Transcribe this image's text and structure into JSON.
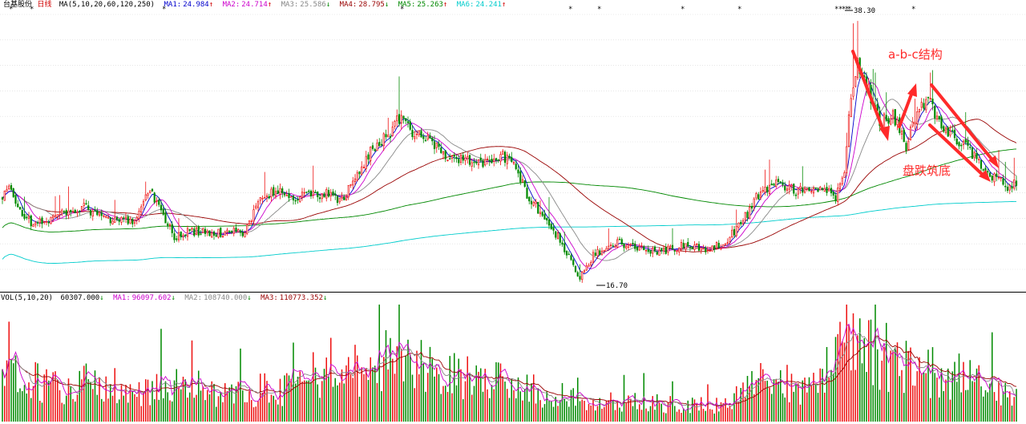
{
  "chart_data": {
    "type": "candlestick",
    "period_label": "日线",
    "stock_name": "台基股份",
    "price_panel": {
      "ma_header": "MA(5,10,20,60,120,250)",
      "ma_values": [
        {
          "label": "MA1:",
          "value": "24.984",
          "arrow": "↑",
          "color": "#0000cc"
        },
        {
          "label": "MA2:",
          "value": "24.714",
          "arrow": "↑",
          "color": "#cc00cc"
        },
        {
          "label": "MA3:",
          "value": "25.586",
          "arrow": "↓",
          "color": "#888888"
        },
        {
          "label": "MA4:",
          "value": "28.795",
          "arrow": "↓",
          "color": "#990000"
        },
        {
          "label": "MA5:",
          "value": "25.263",
          "arrow": "↑",
          "color": "#008800"
        },
        {
          "label": "MA6:",
          "value": "24.241",
          "arrow": "↑",
          "color": "#00cccc"
        }
      ],
      "max_label": "38.30",
      "min_label": "16.70",
      "y_range": [
        16.0,
        39.5
      ],
      "annotations": [
        {
          "text": "a-b-c结构",
          "color": "#ff2a2a"
        },
        {
          "text": "盘跌筑底",
          "color": "#ff2a2a"
        }
      ]
    },
    "volume_panel": {
      "header": "VOL(5,10,20)",
      "current": "60307.000",
      "current_arrow": "↓",
      "ma_values": [
        {
          "label": "MA1:",
          "value": "96097.602",
          "arrow": "↓",
          "color": "#cc00cc"
        },
        {
          "label": "MA2:",
          "value": "108740.000",
          "arrow": "↓",
          "color": "#888888"
        },
        {
          "label": "MA3:",
          "value": "110773.352",
          "arrow": "↓",
          "color": "#990000"
        }
      ]
    },
    "colors": {
      "up": "#ee1111",
      "down": "#008a00",
      "ma1": "#0000cc",
      "ma2": "#cc00cc",
      "ma3": "#888888",
      "ma4": "#990000",
      "ma5": "#008800",
      "ma6": "#00cccc"
    },
    "key_closes": [
      [
        0,
        23.5
      ],
      [
        3,
        24.6
      ],
      [
        8,
        22.6
      ],
      [
        14,
        21.4
      ],
      [
        20,
        21.8
      ],
      [
        28,
        22.4
      ],
      [
        36,
        22.9
      ],
      [
        44,
        22.2
      ],
      [
        52,
        21.6
      ],
      [
        60,
        21.9
      ],
      [
        67,
        24.4
      ],
      [
        72,
        22.6
      ],
      [
        78,
        20.4
      ],
      [
        86,
        20.9
      ],
      [
        96,
        20.6
      ],
      [
        104,
        21.0
      ],
      [
        110,
        20.8
      ],
      [
        116,
        23.2
      ],
      [
        124,
        24.4
      ],
      [
        130,
        23.6
      ],
      [
        138,
        23.8
      ],
      [
        146,
        24.0
      ],
      [
        154,
        23.4
      ],
      [
        162,
        25.8
      ],
      [
        168,
        27.9
      ],
      [
        174,
        28.6
      ],
      [
        180,
        30.2
      ],
      [
        186,
        29.0
      ],
      [
        194,
        28.4
      ],
      [
        202,
        27.0
      ],
      [
        210,
        26.8
      ],
      [
        218,
        26.4
      ],
      [
        226,
        27.3
      ],
      [
        232,
        26.3
      ],
      [
        238,
        24.0
      ],
      [
        246,
        22.0
      ],
      [
        252,
        20.4
      ],
      [
        258,
        18.4
      ],
      [
        262,
        16.9
      ],
      [
        268,
        18.8
      ],
      [
        276,
        20.0
      ],
      [
        284,
        19.8
      ],
      [
        292,
        19.3
      ],
      [
        300,
        19.3
      ],
      [
        310,
        19.7
      ],
      [
        320,
        19.3
      ],
      [
        328,
        20.0
      ],
      [
        336,
        21.8
      ],
      [
        344,
        24.2
      ],
      [
        352,
        25.0
      ],
      [
        360,
        24.2
      ],
      [
        368,
        24.2
      ],
      [
        374,
        24.4
      ],
      [
        378,
        23.6
      ],
      [
        382,
        26.0
      ],
      [
        385,
        32.0
      ],
      [
        388,
        35.0
      ],
      [
        392,
        33.0
      ],
      [
        398,
        30.0
      ],
      [
        404,
        30.5
      ],
      [
        410,
        28.0
      ],
      [
        416,
        31.0
      ],
      [
        420,
        32.0
      ],
      [
        424,
        30.0
      ],
      [
        430,
        29.0
      ],
      [
        436,
        28.0
      ],
      [
        442,
        27.0
      ],
      [
        448,
        25.5
      ],
      [
        452,
        25.0
      ],
      [
        456,
        24.6
      ],
      [
        460,
        25.0
      ]
    ],
    "volume_levels": [
      [
        0,
        78000
      ],
      [
        20,
        48000
      ],
      [
        40,
        54000
      ],
      [
        60,
        42000
      ],
      [
        80,
        58000
      ],
      [
        100,
        38000
      ],
      [
        120,
        44000
      ],
      [
        140,
        46000
      ],
      [
        150,
        62000
      ],
      [
        160,
        72000
      ],
      [
        170,
        76000
      ],
      [
        180,
        80000
      ],
      [
        195,
        68000
      ],
      [
        210,
        58000
      ],
      [
        225,
        52000
      ],
      [
        240,
        46000
      ],
      [
        255,
        34000
      ],
      [
        270,
        30000
      ],
      [
        290,
        26000
      ],
      [
        310,
        22000
      ],
      [
        330,
        24000
      ],
      [
        340,
        56000
      ],
      [
        350,
        46000
      ],
      [
        365,
        44000
      ],
      [
        375,
        58000
      ],
      [
        385,
        120000
      ],
      [
        392,
        100000
      ],
      [
        400,
        86000
      ],
      [
        410,
        74000
      ],
      [
        425,
        66000
      ],
      [
        440,
        54000
      ],
      [
        452,
        44000
      ],
      [
        460,
        38000
      ]
    ],
    "volume_range": [
      0,
      160000
    ]
  }
}
